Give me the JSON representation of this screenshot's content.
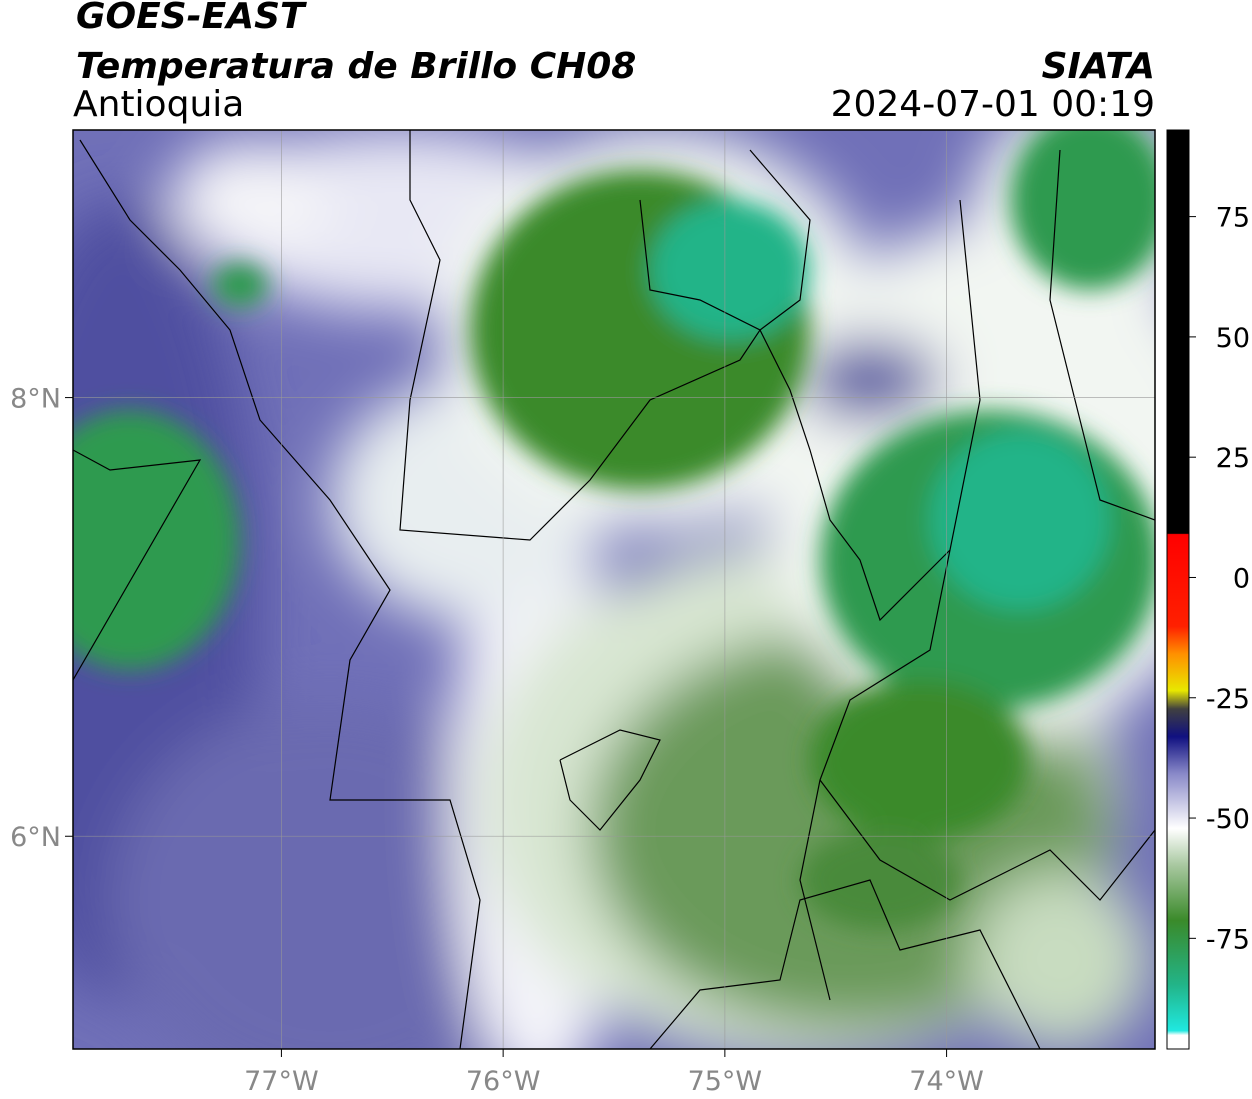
{
  "header": {
    "title": "GOES-EAST",
    "subtitle": "Temperatura de Brillo CH08",
    "region": "Antioquia",
    "source": "SIATA",
    "datetime": "2024-07-01 00:19"
  },
  "map": {
    "xlim": [
      -77.94,
      -73.06
    ],
    "ylim": [
      5.03,
      9.22
    ],
    "xticks": [
      {
        "value": -77,
        "label": "77°W"
      },
      {
        "value": -76,
        "label": "76°W"
      },
      {
        "value": -75,
        "label": "75°W"
      },
      {
        "value": -74,
        "label": "74°W"
      }
    ],
    "yticks": [
      {
        "value": 6,
        "label": "6°N"
      },
      {
        "value": 8,
        "label": "8°N"
      }
    ]
  },
  "colorbar": {
    "lim": [
      -98,
      93
    ],
    "ticks": [
      -75,
      -50,
      -25,
      0,
      25,
      50,
      75
    ]
  }
}
